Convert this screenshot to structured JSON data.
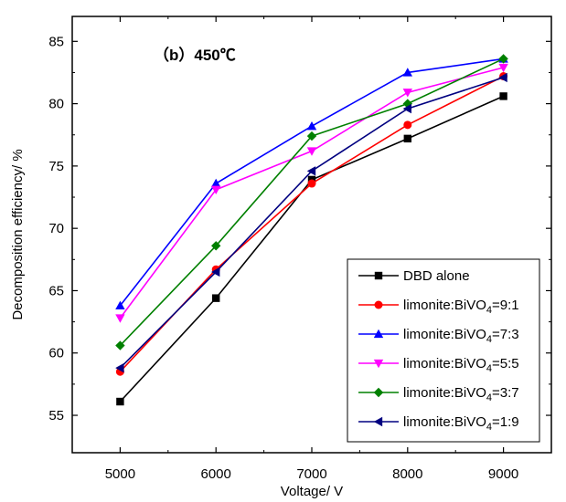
{
  "chart_data": {
    "type": "line",
    "title": "（b）450℃",
    "xlabel": "Voltage/ V",
    "ylabel": "Decomposition efficiency/ %",
    "x": [
      5000,
      6000,
      7000,
      8000,
      9000
    ],
    "xlim": [
      4500,
      9500
    ],
    "ylim": [
      52,
      87
    ],
    "x_ticks": [
      "5000",
      "6000",
      "7000",
      "8000",
      "9000"
    ],
    "y_ticks": [
      "55",
      "60",
      "65",
      "70",
      "75",
      "80",
      "85"
    ],
    "grid": false,
    "legend_position": "bottom-right",
    "series": [
      {
        "name": "DBD alone",
        "legend": {
          "prefix": "DBD alone",
          "sub": "",
          "suffix": ""
        },
        "values": [
          56.1,
          64.4,
          73.9,
          77.2,
          80.6
        ],
        "color": "#000000",
        "marker": "square"
      },
      {
        "name": "limonite:BiVO4=9:1",
        "legend": {
          "prefix": "limonite:BiVO",
          "sub": "4",
          "suffix": "=9:1"
        },
        "values": [
          58.5,
          66.7,
          73.6,
          78.3,
          82.2
        ],
        "color": "#ff0000",
        "marker": "circle"
      },
      {
        "name": "limonite:BiVO4=7:3",
        "legend": {
          "prefix": "limonite:BiVO",
          "sub": "4",
          "suffix": "=7:3"
        },
        "values": [
          63.8,
          73.6,
          78.2,
          82.5,
          83.6
        ],
        "color": "#0000ff",
        "marker": "triangle-up"
      },
      {
        "name": "limonite:BiVO4=5:5",
        "legend": {
          "prefix": "limonite:BiVO",
          "sub": "4",
          "suffix": "=5:5"
        },
        "values": [
          62.8,
          73.1,
          76.2,
          80.9,
          82.9
        ],
        "color": "#ff00ff",
        "marker": "triangle-down"
      },
      {
        "name": "limonite:BiVO4=3:7",
        "legend": {
          "prefix": "limonite:BiVO",
          "sub": "4",
          "suffix": "=3:7"
        },
        "values": [
          60.6,
          68.6,
          77.4,
          80.0,
          83.6
        ],
        "color": "#008000",
        "marker": "diamond"
      },
      {
        "name": "limonite:BiVO4=1:9",
        "legend": {
          "prefix": "limonite:BiVO",
          "sub": "4",
          "suffix": "=1:9"
        },
        "values": [
          58.8,
          66.5,
          74.6,
          79.6,
          82.1
        ],
        "color": "#000080",
        "marker": "triangle-left"
      }
    ]
  }
}
